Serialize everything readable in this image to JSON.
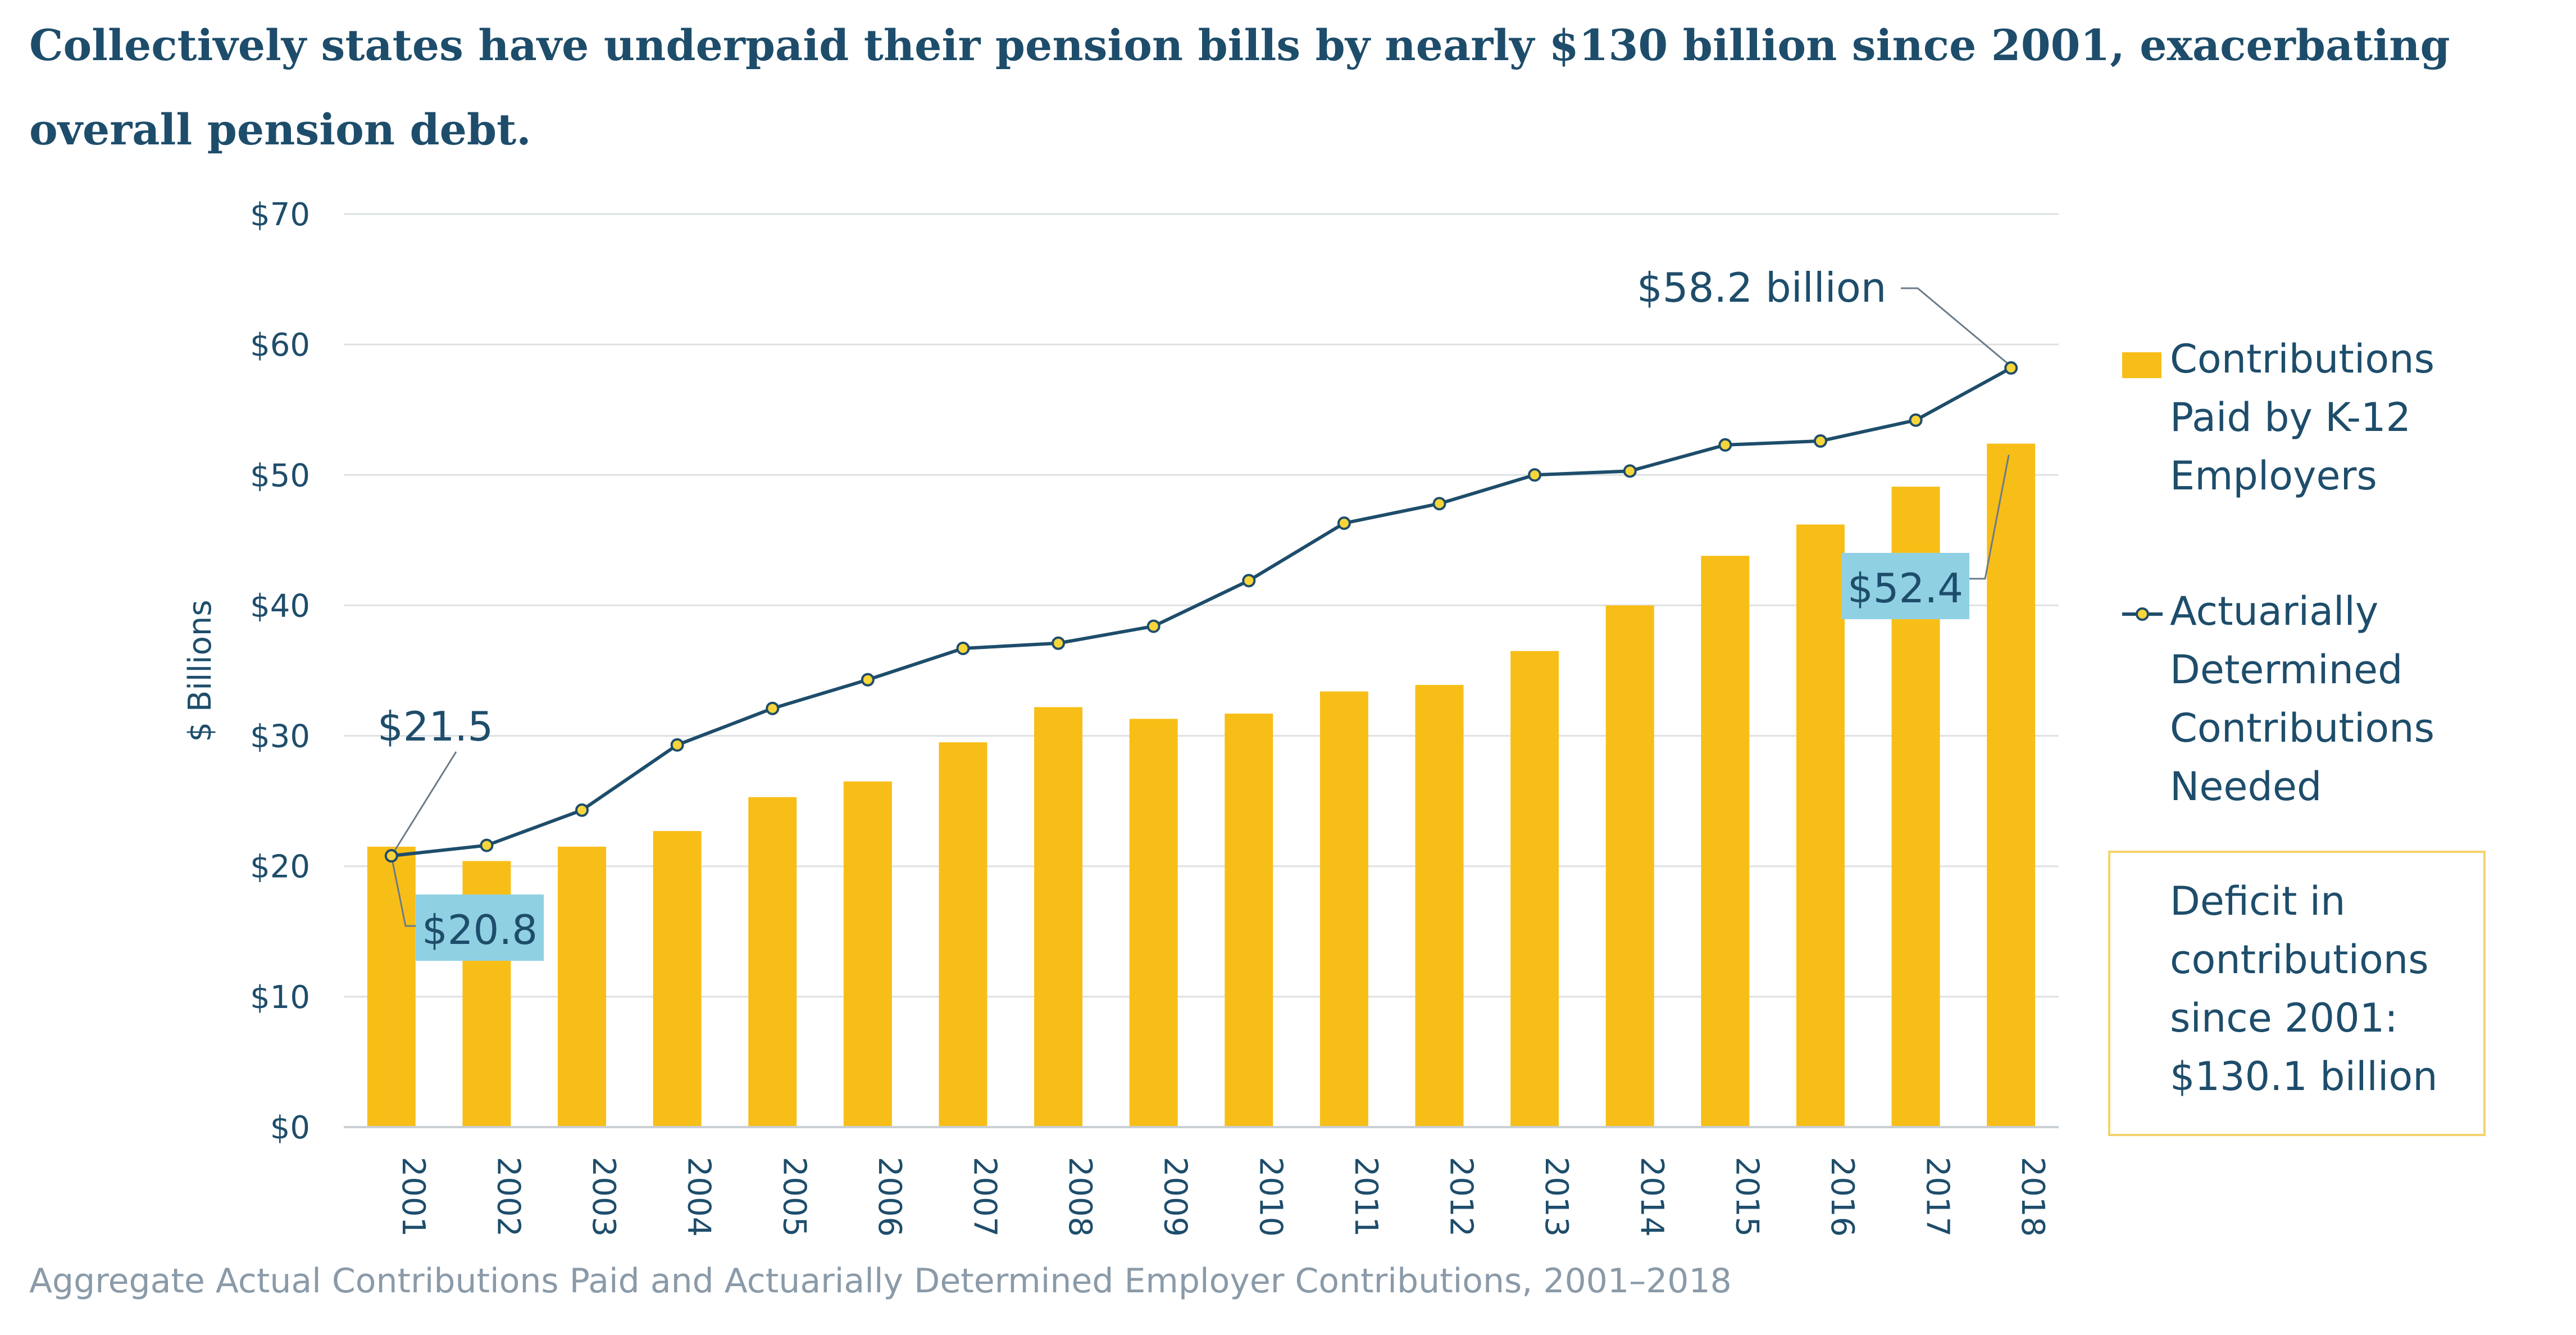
{
  "title": "Collectively states have underpaid their pension bills by nearly $130 billion since 2001, exacerbating overall pension debt.",
  "caption": "Aggregate Actual Contributions Paid and Actuarially Determined Employer Contributions, 2001–2018",
  "colors": {
    "bar": "#f8be18",
    "line": "#1e4d6b",
    "marker_fill": "#f8d53a",
    "callout_bg": "#8fd0e3",
    "grid": "#dde1e4",
    "box_border": "#f3d36c"
  },
  "chart_data": {
    "type": "bar",
    "categories": [
      "2001",
      "2002",
      "2003",
      "2004",
      "2005",
      "2006",
      "2007",
      "2008",
      "2009",
      "2010",
      "2011",
      "2012",
      "2013",
      "2014",
      "2015",
      "2016",
      "2017",
      "2018"
    ],
    "series": [
      {
        "name": "Contributions Paid by K-12 Employers",
        "type": "bar",
        "values": [
          21.5,
          20.4,
          21.5,
          22.7,
          25.3,
          26.5,
          29.5,
          32.2,
          31.3,
          31.7,
          33.4,
          33.9,
          36.5,
          40.0,
          43.8,
          46.2,
          49.1,
          52.4
        ]
      },
      {
        "name": "Actuarially Determined Contributions Needed",
        "type": "line",
        "values": [
          20.8,
          21.6,
          24.3,
          29.3,
          32.1,
          34.3,
          36.7,
          37.1,
          38.4,
          41.9,
          46.3,
          47.8,
          50.0,
          50.3,
          52.3,
          52.6,
          54.2,
          58.2
        ]
      }
    ],
    "ylabel": "$ Billions",
    "ylim": [
      0,
      70
    ],
    "yticks": [
      "$0",
      "$10",
      "$20",
      "$30",
      "$40",
      "$50",
      "$60",
      "$70"
    ],
    "grid": true,
    "legend_position": "right",
    "legend": [
      {
        "label_lines": [
          "Contributions",
          "Paid by K-12",
          "Employers"
        ]
      },
      {
        "label_lines": [
          "Actuarially",
          "Determined",
          "Contributions",
          "Needed"
        ]
      }
    ],
    "annotations": {
      "bar_2001": "$21.5",
      "line_2001": "$20.8",
      "line_2018": "$58.2 billion",
      "bar_2018": "$52.4",
      "deficit_box": [
        "Deficit in",
        "contributions",
        "since 2001:",
        "$130.1 billion"
      ]
    }
  }
}
